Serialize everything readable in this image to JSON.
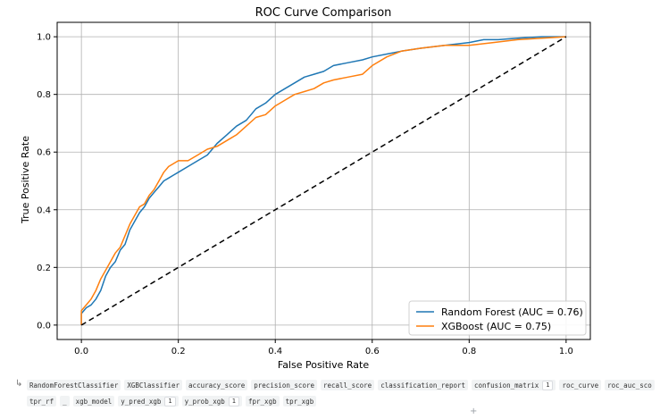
{
  "chart_data": {
    "type": "line",
    "title": "ROC Curve Comparison",
    "xlabel": "False Positive Rate",
    "ylabel": "True Positive Rate",
    "xlim": [
      -0.05,
      1.05
    ],
    "ylim": [
      -0.05,
      1.05
    ],
    "xticks": [
      0.0,
      0.2,
      0.4,
      0.6,
      0.8,
      1.0
    ],
    "yticks": [
      0.0,
      0.2,
      0.4,
      0.6,
      0.8,
      1.0
    ],
    "xtick_labels": [
      "0.0",
      "0.2",
      "0.4",
      "0.6",
      "0.8",
      "1.0"
    ],
    "ytick_labels": [
      "0.0",
      "0.2",
      "0.4",
      "0.6",
      "0.8",
      "1.0"
    ],
    "grid": true,
    "legend_position": "lower-right",
    "series": [
      {
        "name": "Random Forest (AUC = 0.76)",
        "color": "#1f77b4",
        "x": [
          0.0,
          0.0,
          0.01,
          0.02,
          0.03,
          0.04,
          0.05,
          0.06,
          0.07,
          0.08,
          0.09,
          0.1,
          0.11,
          0.12,
          0.13,
          0.14,
          0.15,
          0.16,
          0.17,
          0.18,
          0.19,
          0.2,
          0.22,
          0.24,
          0.26,
          0.28,
          0.3,
          0.32,
          0.34,
          0.35,
          0.36,
          0.38,
          0.4,
          0.42,
          0.44,
          0.46,
          0.48,
          0.5,
          0.52,
          0.55,
          0.58,
          0.6,
          0.63,
          0.66,
          0.7,
          0.75,
          0.8,
          0.83,
          0.86,
          0.9,
          0.95,
          1.0
        ],
        "y": [
          0.0,
          0.04,
          0.06,
          0.07,
          0.09,
          0.12,
          0.17,
          0.2,
          0.22,
          0.26,
          0.28,
          0.33,
          0.36,
          0.39,
          0.41,
          0.44,
          0.46,
          0.48,
          0.5,
          0.51,
          0.52,
          0.53,
          0.55,
          0.57,
          0.59,
          0.63,
          0.66,
          0.69,
          0.71,
          0.73,
          0.75,
          0.77,
          0.8,
          0.82,
          0.84,
          0.86,
          0.87,
          0.88,
          0.9,
          0.91,
          0.92,
          0.93,
          0.94,
          0.95,
          0.96,
          0.97,
          0.98,
          0.99,
          0.99,
          0.995,
          1.0,
          1.0
        ]
      },
      {
        "name": "XGBoost (AUC = 0.75)",
        "color": "#ff7f0e",
        "x": [
          0.0,
          0.0,
          0.01,
          0.02,
          0.03,
          0.04,
          0.05,
          0.06,
          0.07,
          0.08,
          0.09,
          0.1,
          0.11,
          0.12,
          0.13,
          0.14,
          0.15,
          0.16,
          0.17,
          0.18,
          0.19,
          0.2,
          0.22,
          0.24,
          0.26,
          0.28,
          0.3,
          0.32,
          0.34,
          0.36,
          0.38,
          0.4,
          0.42,
          0.44,
          0.46,
          0.48,
          0.5,
          0.52,
          0.55,
          0.58,
          0.6,
          0.63,
          0.66,
          0.7,
          0.75,
          0.8,
          0.85,
          0.9,
          0.95,
          1.0
        ],
        "y": [
          0.0,
          0.05,
          0.07,
          0.09,
          0.12,
          0.16,
          0.19,
          0.22,
          0.25,
          0.27,
          0.31,
          0.35,
          0.38,
          0.41,
          0.42,
          0.45,
          0.47,
          0.5,
          0.53,
          0.55,
          0.56,
          0.57,
          0.57,
          0.59,
          0.61,
          0.62,
          0.64,
          0.66,
          0.69,
          0.72,
          0.73,
          0.76,
          0.78,
          0.8,
          0.81,
          0.82,
          0.84,
          0.85,
          0.86,
          0.87,
          0.9,
          0.93,
          0.95,
          0.96,
          0.97,
          0.97,
          0.98,
          0.99,
          0.995,
          1.0
        ]
      },
      {
        "name": "",
        "color": "#000000",
        "dashed": true,
        "x": [
          0.0,
          1.0
        ],
        "y": [
          0.0,
          1.0
        ]
      }
    ]
  },
  "variables": {
    "row1": [
      {
        "name": "RandomForestClassifier"
      },
      {
        "name": "XGBClassifier"
      },
      {
        "name": "accuracy_score"
      },
      {
        "name": "precision_score"
      },
      {
        "name": "recall_score"
      },
      {
        "name": "classification_report"
      },
      {
        "name": "confusion_matrix",
        "count": "1"
      },
      {
        "name": "roc_curve"
      },
      {
        "name": "roc_auc_sco"
      }
    ],
    "row2": [
      {
        "name": "tpr_rf"
      },
      {
        "name": "_"
      },
      {
        "name": "xgb_model"
      },
      {
        "name": "y_pred_xgb",
        "count": "1"
      },
      {
        "name": "y_prob_xgb",
        "count": "1"
      },
      {
        "name": "fpr_xgb"
      },
      {
        "name": "tpr_xgb"
      }
    ]
  }
}
